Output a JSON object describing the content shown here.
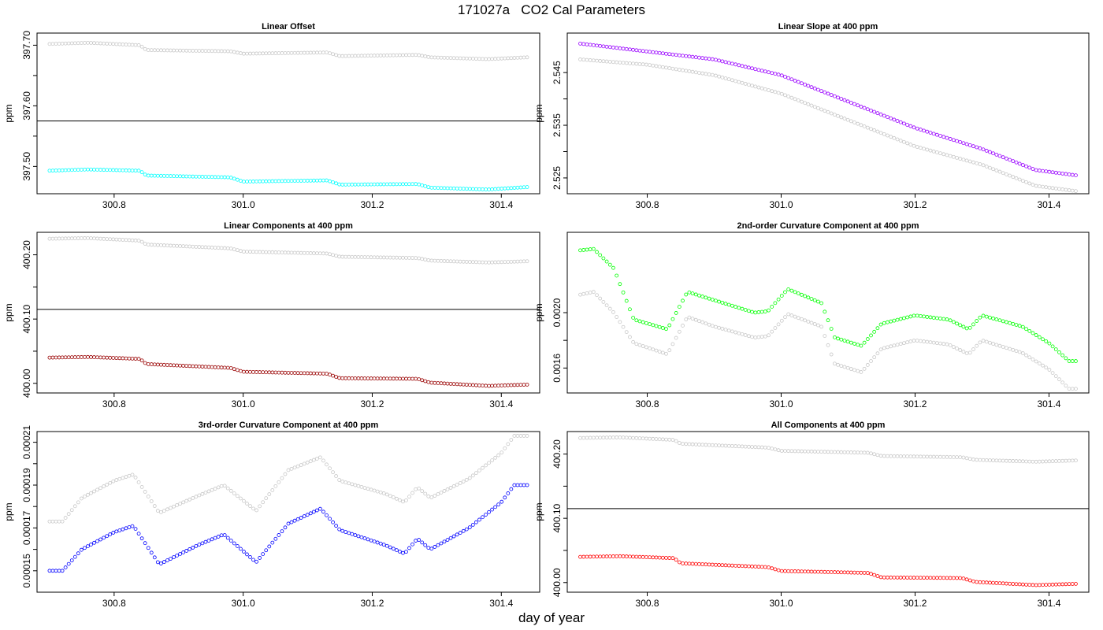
{
  "figure": {
    "title": "171027a   CO2 Cal Parameters",
    "xlabel": "day of year"
  },
  "colors": {
    "reference_series": "#c8c8c8",
    "frame": "#000000"
  },
  "chart_data": [
    {
      "type": "scatter",
      "title": "Linear Offset",
      "ylabel": "ppm",
      "xlim": [
        300.7,
        301.44
      ],
      "ylim": [
        397.455,
        397.72
      ],
      "yticks": [
        397.5,
        397.6,
        397.7
      ],
      "ytick_labels": [
        "397.50",
        "397.60",
        "397.70"
      ],
      "xticks": [
        300.8,
        301.0,
        301.2,
        301.4
      ],
      "xtick_labels": [
        "300.8",
        "301.0",
        "301.2",
        "301.4"
      ],
      "hline": 397.575,
      "series": [
        {
          "color": "#c8c8c8",
          "points": [
            [
              300.7,
              397.702
            ],
            [
              300.76,
              397.704
            ],
            [
              300.84,
              397.7
            ],
            [
              300.85,
              397.692
            ],
            [
              300.98,
              397.69
            ],
            [
              301.0,
              397.686
            ],
            [
              301.13,
              397.688
            ],
            [
              301.15,
              397.682
            ],
            [
              301.27,
              397.684
            ],
            [
              301.29,
              397.68
            ],
            [
              301.38,
              397.677
            ],
            [
              301.44,
              397.68
            ]
          ]
        },
        {
          "color": "#00ffff",
          "points": [
            [
              300.7,
              397.493
            ],
            [
              300.76,
              397.495
            ],
            [
              300.84,
              397.493
            ],
            [
              300.85,
              397.485
            ],
            [
              300.98,
              397.482
            ],
            [
              301.0,
              397.475
            ],
            [
              301.13,
              397.477
            ],
            [
              301.15,
              397.47
            ],
            [
              301.27,
              397.471
            ],
            [
              301.29,
              397.465
            ],
            [
              301.38,
              397.462
            ],
            [
              301.44,
              397.466
            ]
          ]
        }
      ]
    },
    {
      "type": "scatter",
      "title": "Linear Slope at 400 ppm",
      "ylabel": "ppm",
      "xlim": [
        300.7,
        301.44
      ],
      "ylim": [
        2.522,
        2.5525
      ],
      "yticks": [
        2.525,
        2.535,
        2.545
      ],
      "ytick_labels": [
        "2.525",
        "2.535",
        "2.545"
      ],
      "xticks": [
        300.8,
        301.0,
        301.2,
        301.4
      ],
      "xtick_labels": [
        "300.8",
        "301.0",
        "301.2",
        "301.4"
      ],
      "series": [
        {
          "color": "#c8c8c8",
          "points": [
            [
              300.7,
              2.5475
            ],
            [
              300.8,
              2.5465
            ],
            [
              300.9,
              2.5445
            ],
            [
              301.0,
              2.541
            ],
            [
              301.1,
              2.536
            ],
            [
              301.2,
              2.531
            ],
            [
              301.3,
              2.5275
            ],
            [
              301.38,
              2.5235
            ],
            [
              301.44,
              2.5225
            ]
          ]
        },
        {
          "color": "#9900ff",
          "points": [
            [
              300.7,
              2.5505
            ],
            [
              300.8,
              2.549
            ],
            [
              300.9,
              2.5475
            ],
            [
              301.0,
              2.5445
            ],
            [
              301.1,
              2.5395
            ],
            [
              301.2,
              2.5345
            ],
            [
              301.3,
              2.5305
            ],
            [
              301.38,
              2.5265
            ],
            [
              301.44,
              2.5255
            ]
          ]
        }
      ]
    },
    {
      "type": "scatter",
      "title": "Linear Components at 400 ppm",
      "ylabel": "ppm",
      "xlim": [
        300.7,
        301.44
      ],
      "ylim": [
        399.985,
        400.235
      ],
      "yticks": [
        400.0,
        400.1,
        400.2
      ],
      "ytick_labels": [
        "400.00",
        "400.10",
        "400.20"
      ],
      "xticks": [
        300.8,
        301.0,
        301.2,
        301.4
      ],
      "xtick_labels": [
        "300.8",
        "301.0",
        "301.2",
        "301.4"
      ],
      "hline": 400.115,
      "series": [
        {
          "color": "#c8c8c8",
          "points": [
            [
              300.7,
              400.225
            ],
            [
              300.76,
              400.226
            ],
            [
              300.84,
              400.222
            ],
            [
              300.85,
              400.216
            ],
            [
              300.98,
              400.21
            ],
            [
              301.0,
              400.205
            ],
            [
              301.13,
              400.202
            ],
            [
              301.15,
              400.197
            ],
            [
              301.27,
              400.195
            ],
            [
              301.29,
              400.191
            ],
            [
              301.38,
              400.188
            ],
            [
              301.44,
              400.19
            ]
          ]
        },
        {
          "color": "#990000",
          "points": [
            [
              300.7,
              400.04
            ],
            [
              300.76,
              400.041
            ],
            [
              300.84,
              400.038
            ],
            [
              300.85,
              400.03
            ],
            [
              300.98,
              400.024
            ],
            [
              301.0,
              400.018
            ],
            [
              301.13,
              400.015
            ],
            [
              301.15,
              400.008
            ],
            [
              301.27,
              400.007
            ],
            [
              301.29,
              400.001
            ],
            [
              301.38,
              399.996
            ],
            [
              301.44,
              399.998
            ]
          ]
        }
      ]
    },
    {
      "type": "scatter",
      "title": "2nd-order Curvature Component at 400 ppm",
      "ylabel": "ppm",
      "xlim": [
        300.7,
        301.44
      ],
      "ylim": [
        0.00142,
        0.00258
      ],
      "yticks": [
        0.0016,
        0.002
      ],
      "ytick_labels": [
        "0.0016",
        "0.0020"
      ],
      "xticks": [
        300.8,
        301.0,
        301.2,
        301.4
      ],
      "xtick_labels": [
        "300.8",
        "301.0",
        "301.2",
        "301.4"
      ],
      "series": [
        {
          "color": "#c8c8c8",
          "points": [
            [
              300.7,
              0.00213
            ],
            [
              300.72,
              0.00215
            ],
            [
              300.75,
              0.002
            ],
            [
              300.78,
              0.00178
            ],
            [
              300.83,
              0.0017
            ],
            [
              300.86,
              0.00197
            ],
            [
              300.9,
              0.0019
            ],
            [
              300.96,
              0.00182
            ],
            [
              300.98,
              0.00183
            ],
            [
              301.01,
              0.00199
            ],
            [
              301.06,
              0.0019
            ],
            [
              301.08,
              0.00163
            ],
            [
              301.12,
              0.00157
            ],
            [
              301.15,
              0.00174
            ],
            [
              301.2,
              0.0018
            ],
            [
              301.25,
              0.00177
            ],
            [
              301.28,
              0.0017
            ],
            [
              301.3,
              0.0018
            ],
            [
              301.36,
              0.00171
            ],
            [
              301.4,
              0.00159
            ],
            [
              301.43,
              0.00145
            ]
          ]
        },
        {
          "color": "#00ff00",
          "points": [
            [
              300.7,
              0.00245
            ],
            [
              300.72,
              0.00246
            ],
            [
              300.75,
              0.00232
            ],
            [
              300.78,
              0.00195
            ],
            [
              300.83,
              0.00188
            ],
            [
              300.86,
              0.00215
            ],
            [
              300.9,
              0.00209
            ],
            [
              300.96,
              0.002
            ],
            [
              300.98,
              0.00201
            ],
            [
              301.01,
              0.00217
            ],
            [
              301.06,
              0.00207
            ],
            [
              301.08,
              0.00182
            ],
            [
              301.12,
              0.00176
            ],
            [
              301.15,
              0.00192
            ],
            [
              301.2,
              0.00198
            ],
            [
              301.25,
              0.00195
            ],
            [
              301.28,
              0.00188
            ],
            [
              301.3,
              0.00198
            ],
            [
              301.36,
              0.0019
            ],
            [
              301.4,
              0.00178
            ],
            [
              301.43,
              0.00165
            ]
          ]
        }
      ]
    },
    {
      "type": "scatter",
      "title": "3rd-order Curvature Component at 400 ppm",
      "ylabel": "ppm",
      "xlim": [
        300.7,
        301.44
      ],
      "ylim": [
        0.00014,
        0.000215
      ],
      "yticks": [
        0.00015,
        0.00017,
        0.00019,
        0.00021
      ],
      "ytick_labels": [
        "0.00015",
        "0.00017",
        "0.00019",
        "0.00021"
      ],
      "xticks": [
        300.8,
        301.0,
        301.2,
        301.4
      ],
      "xtick_labels": [
        "300.8",
        "301.0",
        "301.2",
        "301.4"
      ],
      "series": [
        {
          "color": "#c8c8c8",
          "points": [
            [
              300.7,
              0.000173
            ],
            [
              300.72,
              0.000173
            ],
            [
              300.75,
              0.000184
            ],
            [
              300.8,
              0.000192
            ],
            [
              300.83,
              0.000195
            ],
            [
              300.87,
              0.000177
            ],
            [
              300.93,
              0.000185
            ],
            [
              300.97,
              0.00019
            ],
            [
              301.02,
              0.000178
            ],
            [
              301.07,
              0.000197
            ],
            [
              301.12,
              0.000203
            ],
            [
              301.15,
              0.000192
            ],
            [
              301.22,
              0.000186
            ],
            [
              301.25,
              0.000182
            ],
            [
              301.27,
              0.000189
            ],
            [
              301.29,
              0.000184
            ],
            [
              301.35,
              0.000193
            ],
            [
              301.4,
              0.000205
            ],
            [
              301.42,
              0.000213
            ],
            [
              301.44,
              0.000213
            ]
          ]
        },
        {
          "color": "#0000ff",
          "points": [
            [
              300.7,
              0.00015
            ],
            [
              300.72,
              0.00015
            ],
            [
              300.75,
              0.00016
            ],
            [
              300.8,
              0.000168
            ],
            [
              300.83,
              0.000171
            ],
            [
              300.87,
              0.000153
            ],
            [
              300.93,
              0.000162
            ],
            [
              300.97,
              0.000167
            ],
            [
              301.02,
              0.000154
            ],
            [
              301.07,
              0.000172
            ],
            [
              301.12,
              0.000179
            ],
            [
              301.15,
              0.000169
            ],
            [
              301.22,
              0.000162
            ],
            [
              301.25,
              0.000158
            ],
            [
              301.27,
              0.000165
            ],
            [
              301.29,
              0.00016
            ],
            [
              301.35,
              0.00017
            ],
            [
              301.4,
              0.000182
            ],
            [
              301.42,
              0.00019
            ],
            [
              301.44,
              0.00019
            ]
          ]
        }
      ]
    },
    {
      "type": "scatter",
      "title": "All Components at 400 ppm",
      "ylabel": "ppm",
      "xlim": [
        300.7,
        301.44
      ],
      "ylim": [
        399.985,
        400.235
      ],
      "yticks": [
        400.0,
        400.1,
        400.2
      ],
      "ytick_labels": [
        "400.00",
        "400.10",
        "400.20"
      ],
      "xticks": [
        300.8,
        301.0,
        301.2,
        301.4
      ],
      "xtick_labels": [
        "300.8",
        "301.0",
        "301.2",
        "301.4"
      ],
      "hline": 400.115,
      "series": [
        {
          "color": "#c8c8c8",
          "points": [
            [
              300.7,
              400.225
            ],
            [
              300.76,
              400.226
            ],
            [
              300.84,
              400.222
            ],
            [
              300.85,
              400.216
            ],
            [
              300.98,
              400.21
            ],
            [
              301.0,
              400.205
            ],
            [
              301.13,
              400.202
            ],
            [
              301.15,
              400.197
            ],
            [
              301.27,
              400.195
            ],
            [
              301.29,
              400.191
            ],
            [
              301.38,
              400.188
            ],
            [
              301.44,
              400.19
            ]
          ]
        },
        {
          "color": "#ff0000",
          "points": [
            [
              300.7,
              400.04
            ],
            [
              300.76,
              400.041
            ],
            [
              300.84,
              400.038
            ],
            [
              300.85,
              400.03
            ],
            [
              300.98,
              400.024
            ],
            [
              301.0,
              400.018
            ],
            [
              301.13,
              400.015
            ],
            [
              301.15,
              400.008
            ],
            [
              301.27,
              400.007
            ],
            [
              301.29,
              400.001
            ],
            [
              301.38,
              399.996
            ],
            [
              301.44,
              399.998
            ]
          ]
        }
      ]
    }
  ]
}
